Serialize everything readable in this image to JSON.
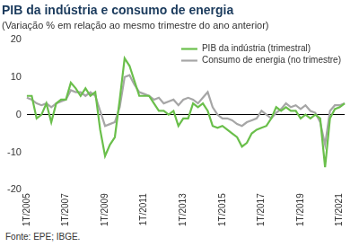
{
  "chart_data": {
    "type": "line",
    "title": "PIB da indústria e consumo de energia",
    "subtitle": "(Variação % em relação ao mesmo trimestre do ano anterior)",
    "source": "Fonte: EPE; IBGE.",
    "categories": [
      "1T/2005",
      null,
      null,
      null,
      null,
      null,
      null,
      null,
      "1T/2007",
      null,
      null,
      null,
      null,
      null,
      null,
      null,
      "1T/2009",
      null,
      null,
      null,
      null,
      null,
      null,
      null,
      "1T/2011",
      null,
      null,
      null,
      null,
      null,
      null,
      null,
      "1T/2013",
      null,
      null,
      null,
      null,
      null,
      null,
      null,
      "1T/2015",
      null,
      null,
      null,
      null,
      null,
      null,
      null,
      "1T/2017",
      null,
      null,
      null,
      null,
      null,
      null,
      null,
      "1T/2019",
      null,
      null,
      null,
      null,
      null,
      null,
      null,
      "1T/2021",
      null
    ],
    "series": [
      {
        "name": "PIB da indústria (trimestral)",
        "color": "#6abf4b",
        "values": [
          5,
          5,
          -1,
          0,
          3,
          -2,
          3,
          4,
          4,
          8.5,
          7,
          5,
          7,
          5,
          6,
          -4,
          -11,
          -8,
          -6,
          4,
          15,
          13,
          9,
          5,
          5,
          5,
          3,
          1,
          1,
          0,
          1,
          -3,
          -1,
          -1,
          3,
          2,
          3,
          1,
          -3,
          -3.5,
          -3,
          -4,
          -5,
          -6,
          -8.5,
          -7.5,
          -5,
          -4,
          -3.5,
          -3,
          -1,
          2,
          1,
          2,
          1,
          1,
          -1,
          0,
          -1,
          0,
          -1,
          -14,
          -1,
          1.5,
          2,
          3
        ]
      },
      {
        "name": "Consumo de energia (no trimestre)",
        "color": "#a6a6a6",
        "values": [
          4.5,
          4,
          3,
          2.5,
          3,
          2,
          3,
          3.5,
          4,
          6.5,
          6,
          6,
          5,
          6,
          5,
          1,
          -3,
          -2.5,
          -2,
          2,
          10,
          10.5,
          8,
          6,
          5.5,
          5,
          4,
          4.5,
          3,
          3.5,
          4,
          2.5,
          4,
          4.5,
          4,
          3,
          4.5,
          6,
          2,
          0,
          -1,
          -1,
          -1.5,
          -2.5,
          -3,
          -2,
          -1.5,
          -1,
          1,
          0,
          -1,
          0.5,
          1.5,
          3,
          2,
          2.5,
          1.5,
          2.5,
          1,
          0.5,
          -2,
          -8,
          1,
          2.5,
          2.5,
          3
        ]
      }
    ],
    "ylim": [
      -20,
      20
    ],
    "yticks": [
      -20,
      -10,
      0,
      10,
      20
    ],
    "grid": false,
    "legend": "top-right"
  }
}
